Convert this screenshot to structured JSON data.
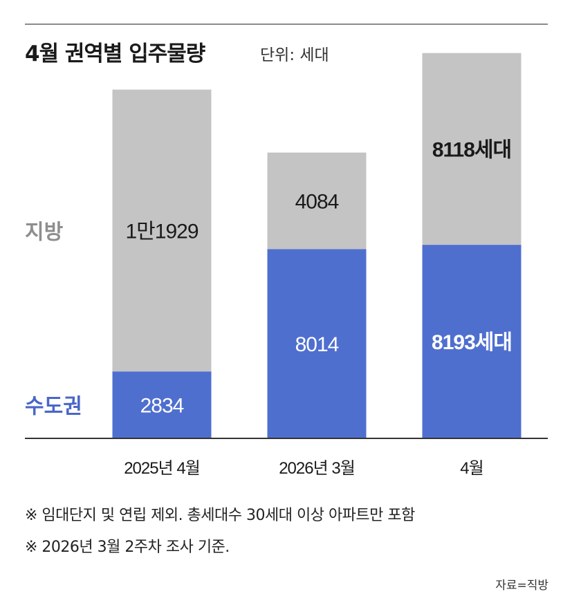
{
  "title": "4월 권역별 입주물량",
  "unit": "단위: 세대",
  "chart_data": {
    "type": "bar",
    "stacked": true,
    "categories": [
      "2025년 4월",
      "2026년 3월",
      "4월"
    ],
    "series": [
      {
        "name": "수도권",
        "values": [
          2834,
          8014,
          8193
        ],
        "labels": [
          "2834",
          "8014",
          "8193세대"
        ],
        "color": "#4f6fcf"
      },
      {
        "name": "지방",
        "values": [
          11929,
          4084,
          8118
        ],
        "labels": [
          "1만1929",
          "4084",
          "8118세대"
        ],
        "color": "#c4c4c4"
      }
    ],
    "series_label_colors": [
      "#4a66c8",
      "#8e8e8e"
    ],
    "ylim": [
      0,
      16800
    ],
    "grid": false,
    "highlight_category_index": 2
  },
  "notes": [
    "※ 임대단지 및 연립 제외. 총세대수 30세대 이상 아파트만 포함",
    "※ 2026년 3월 2주차 조사 기준."
  ],
  "source": "자료=직방"
}
